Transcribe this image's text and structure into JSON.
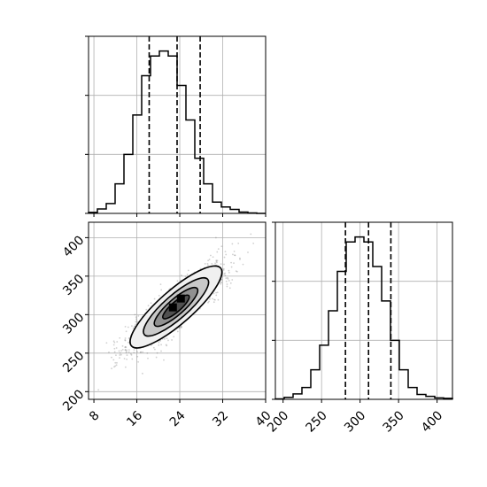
{
  "chart_data": {
    "type": "corner",
    "parameters": [
      "",
      ""
    ],
    "panels": [
      {
        "panel": "marginal-x",
        "type": "histogram",
        "xlim": [
          7,
          40
        ],
        "ylim": [
          0,
          1800
        ],
        "grid": true,
        "bin_edges": [
          7,
          8.65,
          10.3,
          11.95,
          13.6,
          15.25,
          16.9,
          18.55,
          20.2,
          21.85,
          23.5,
          25.15,
          26.8,
          28.45,
          30.1,
          31.75,
          33.4,
          35.05,
          36.7,
          38.35,
          40
        ],
        "counts": [
          10,
          45,
          100,
          300,
          600,
          1000,
          1400,
          1600,
          1650,
          1600,
          1300,
          950,
          560,
          300,
          115,
          65,
          40,
          14,
          5,
          0
        ],
        "quantiles": [
          18.3,
          23.5,
          27.8
        ]
      },
      {
        "panel": "joint",
        "type": "scatter-density",
        "xlim": [
          7,
          40
        ],
        "ylim": [
          190,
          420
        ],
        "x_ticks": [
          8,
          16,
          24,
          32,
          40
        ],
        "y_ticks": [
          200,
          250,
          300,
          350,
          400
        ],
        "grid": true,
        "mean": [
          23.3,
          310
        ],
        "std": [
          4.5,
          28
        ],
        "correlation": 0.85,
        "contour_levels": 4
      },
      {
        "panel": "marginal-y",
        "type": "histogram",
        "xlim": [
          190,
          420
        ],
        "ylim": [
          0,
          1800
        ],
        "x_ticks": [
          200,
          250,
          300,
          350,
          400
        ],
        "grid": true,
        "bin_edges": [
          190,
          201.5,
          213,
          224.5,
          236,
          247.5,
          259,
          270.5,
          282,
          293.5,
          305,
          316.5,
          328,
          339.5,
          351,
          362.5,
          374,
          385.5,
          397,
          408.5,
          420
        ],
        "counts": [
          5,
          20,
          55,
          120,
          300,
          550,
          900,
          1300,
          1600,
          1650,
          1600,
          1350,
          1000,
          600,
          300,
          120,
          50,
          30,
          15,
          10
        ],
        "quantiles": [
          281,
          311,
          340
        ]
      }
    ]
  }
}
